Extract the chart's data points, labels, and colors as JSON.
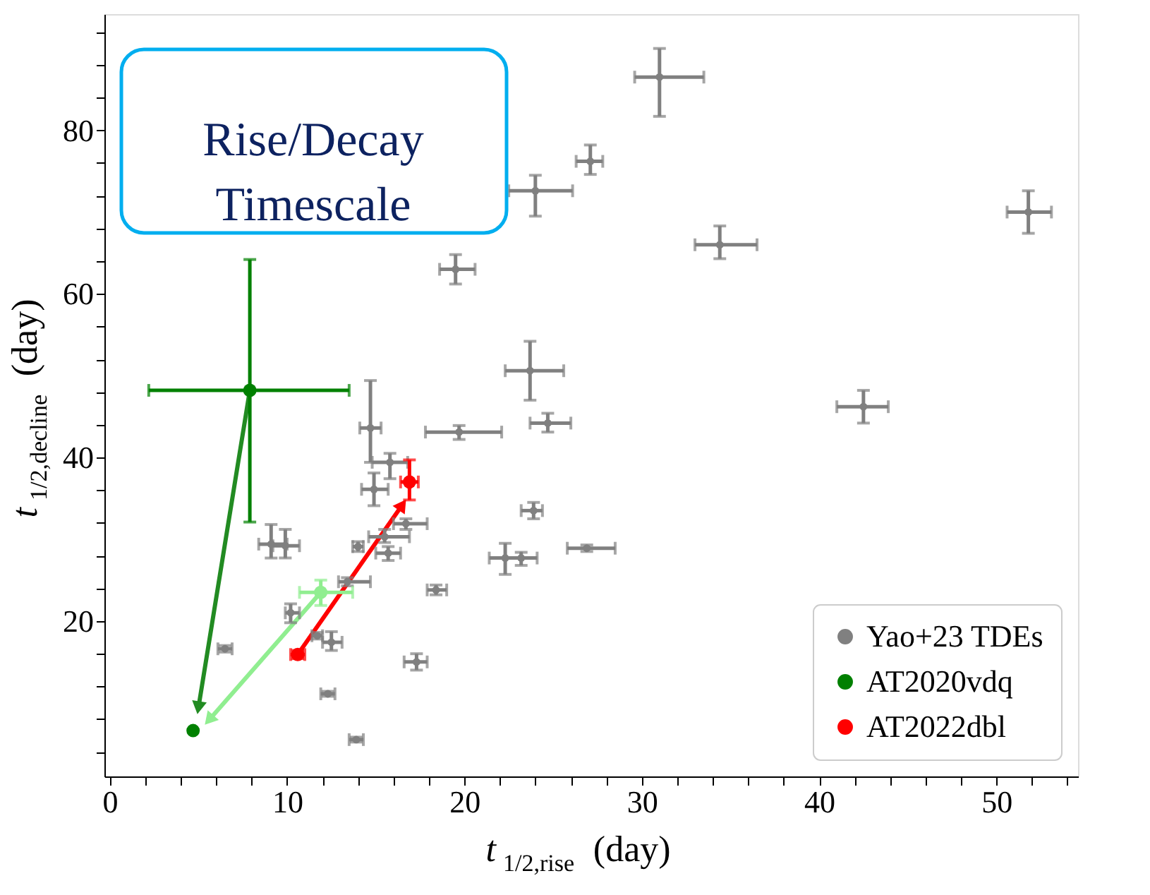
{
  "chart_data": {
    "type": "scatter",
    "xlabel": "t$_{1/2,rise}$ (day)",
    "ylabel": "t$_{1/2,decline}$ (day)",
    "annotations": [
      "Rise/Decay Timescale"
    ],
    "xlim": [
      -0.3,
      54.6
    ],
    "ylim": [
      1.0,
      94.2
    ],
    "xticks": [
      0,
      {
        "value": 2,
        "label": null
      },
      {
        "value": 4,
        "label": null
      },
      {
        "value": 6,
        "label": null
      },
      {
        "value": 8,
        "label": null
      },
      10,
      {
        "value": 12,
        "label": null
      },
      {
        "value": 14,
        "label": null
      },
      {
        "value": 16,
        "label": null
      },
      {
        "value": 18,
        "label": null
      },
      20,
      {
        "value": 22,
        "label": null
      },
      {
        "value": 24,
        "label": null
      },
      {
        "value": 26,
        "label": null
      },
      {
        "value": 28,
        "label": null
      },
      30,
      {
        "value": 32,
        "label": null
      },
      {
        "value": 34,
        "label": null
      },
      {
        "value": 36,
        "label": null
      },
      {
        "value": 38,
        "label": null
      },
      40,
      {
        "value": 42,
        "label": null
      },
      {
        "value": 44,
        "label": null
      },
      {
        "value": 46,
        "label": null
      },
      {
        "value": 48,
        "label": null
      },
      50,
      {
        "value": 52,
        "label": null
      },
      {
        "value": 54,
        "label": null
      }
    ],
    "yticks": [
      {
        "value": 4,
        "label": null
      },
      {
        "value": 8,
        "label": null
      },
      {
        "value": 12,
        "label": null
      },
      {
        "value": 16,
        "label": null
      },
      20,
      {
        "value": 24,
        "label": null
      },
      {
        "value": 28,
        "label": null
      },
      {
        "value": 32,
        "label": null
      },
      {
        "value": 36,
        "label": null
      },
      40,
      {
        "value": 44,
        "label": null
      },
      {
        "value": 48,
        "label": null
      },
      {
        "value": 52,
        "label": null
      },
      {
        "value": 56,
        "label": null
      },
      60,
      {
        "value": 64,
        "label": null
      },
      {
        "value": 68,
        "label": null
      },
      {
        "value": 72,
        "label": null
      },
      {
        "value": 76,
        "label": null
      },
      80,
      {
        "value": 84,
        "label": null
      },
      {
        "value": 88,
        "label": null
      },
      {
        "value": 92,
        "label": null
      }
    ],
    "grid": false,
    "legend": "bottom right",
    "marker": "circle",
    "series": [
      {
        "name": "Yao+23 TDEs",
        "color": "#808080",
        "x": [
          24.0,
          19.5,
          23.7,
          14.7,
          27.1,
          31.0,
          34.4,
          51.8,
          42.5,
          24.7,
          19.7,
          15.8,
          14.9,
          23.9,
          16.7,
          15.5,
          15.7,
          14.0,
          9.1,
          9.9,
          22.3,
          23.2,
          26.9,
          13.4,
          18.4,
          10.2,
          11.7,
          12.5,
          6.5,
          17.3,
          12.3,
          13.9
        ],
        "values": [
          72.6,
          63.0,
          50.6,
          43.6,
          76.2,
          86.5,
          66.0,
          70.0,
          46.2,
          44.2,
          43.1,
          39.4,
          36.1,
          33.5,
          31.9,
          30.3,
          28.3,
          29.1,
          29.4,
          29.2,
          27.7,
          27.7,
          28.9,
          24.8,
          23.8,
          21.0,
          18.2,
          17.4,
          16.6,
          15.0,
          11.1,
          5.5
        ],
        "xerrors": [
          [
            22.5,
            26.1
          ],
          [
            18.6,
            20.6
          ],
          [
            22.3,
            25.6
          ],
          [
            14.1,
            15.3
          ],
          [
            26.3,
            27.8
          ],
          [
            29.6,
            33.5
          ],
          [
            33.0,
            36.5
          ],
          [
            50.6,
            53.1
          ],
          [
            41.0,
            43.9
          ],
          [
            23.7,
            26.0
          ],
          [
            17.8,
            22.1
          ],
          [
            14.8,
            16.8
          ],
          [
            14.2,
            15.7
          ],
          [
            23.2,
            24.4
          ],
          [
            16.0,
            17.9
          ],
          [
            14.6,
            16.9
          ],
          [
            15.0,
            16.4
          ],
          [
            13.7,
            14.3
          ],
          [
            8.4,
            10.0
          ],
          [
            9.2,
            10.7
          ],
          [
            21.4,
            23.2
          ],
          [
            22.3,
            24.1
          ],
          [
            25.8,
            28.5
          ],
          [
            12.9,
            14.7
          ],
          [
            17.9,
            19.0
          ],
          [
            9.9,
            10.7
          ],
          [
            11.4,
            12.0
          ],
          [
            12.0,
            13.1
          ],
          [
            6.1,
            6.9
          ],
          [
            16.6,
            17.9
          ],
          [
            11.9,
            12.7
          ],
          [
            13.5,
            14.3
          ]
        ],
        "errors": [
          [
            69.5,
            74.5
          ],
          [
            61.2,
            64.8
          ],
          [
            47.0,
            54.2
          ],
          [
            39.4,
            49.4
          ],
          [
            74.6,
            78.2
          ],
          [
            81.7,
            90.0
          ],
          [
            64.3,
            68.3
          ],
          [
            67.4,
            72.6
          ],
          [
            44.2,
            48.2
          ],
          [
            43.1,
            45.4
          ],
          [
            42.2,
            43.9
          ],
          [
            37.4,
            40.5
          ],
          [
            34.1,
            38.1
          ],
          [
            32.5,
            34.5
          ],
          [
            31.2,
            32.5
          ],
          [
            29.6,
            31.2
          ],
          [
            27.4,
            29.1
          ],
          [
            28.5,
            29.7
          ],
          [
            27.7,
            31.8
          ],
          [
            27.7,
            31.2
          ],
          [
            25.7,
            29.5
          ],
          [
            26.8,
            28.4
          ],
          [
            28.5,
            29.3
          ],
          [
            24.3,
            25.3
          ],
          [
            23.2,
            24.4
          ],
          [
            19.8,
            22.1
          ],
          [
            17.8,
            18.6
          ],
          [
            16.4,
            18.7
          ],
          [
            16.2,
            17.0
          ],
          [
            14.0,
            16.0
          ],
          [
            10.8,
            11.4
          ],
          [
            5.2,
            5.8
          ]
        ]
      },
      {
        "name": "AT2020vdq",
        "color": "#008000",
        "x": [
          7.9,
          4.7
        ],
        "values": [
          48.2,
          6.6
        ],
        "xerrors": [
          [
            2.2,
            13.5
          ],
          null
        ],
        "errors": [
          [
            32.1,
            64.2
          ],
          null
        ]
      },
      {
        "name": "AT2022dbl",
        "color": "#ff0000",
        "x": [
          10.6,
          16.9
        ],
        "values": [
          15.9,
          37.0
        ],
        "xerrors": [
          [
            10.2,
            11.0
          ],
          [
            16.4,
            17.4
          ]
        ],
        "errors": [
          [
            15.4,
            16.4
          ],
          [
            34.8,
            39.7
          ]
        ]
      },
      {
        "color": "#90ee90",
        "x": [
          11.9
        ],
        "values": [
          23.5
        ],
        "xerrors": [
          [
            10.7,
            13.7
          ]
        ],
        "errors": [
          [
            21.9,
            25.0
          ]
        ]
      },
      {
        "color": "#228b22",
        "type": "line",
        "marker": "triangle",
        "x": [
          7.9,
          5.0
        ],
        "values": [
          48.2,
          9.4
        ]
      },
      {
        "color": "#90ee90",
        "type": "line",
        "marker": "triangle",
        "x": [
          11.9,
          5.6
        ],
        "values": [
          23.5,
          7.9
        ]
      },
      {
        "color": "#ff0000",
        "type": "line",
        "marker": "triangle",
        "x": [
          10.6,
          16.5
        ],
        "values": [
          15.9,
          34.2
        ]
      }
    ]
  }
}
